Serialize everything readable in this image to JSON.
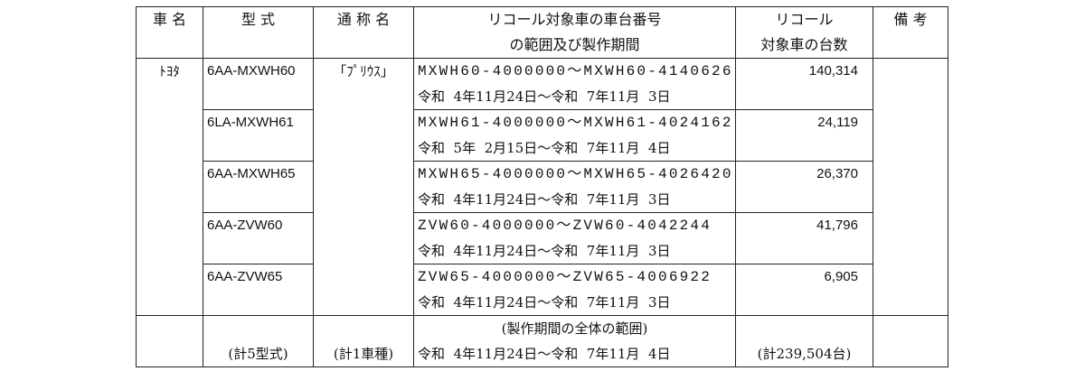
{
  "header": {
    "maker": "車 名",
    "model": "型 式",
    "name": "通 称 名",
    "range_line1": "リコール対象車の車台番号",
    "range_line2": "の範囲及び製作期間",
    "count_line1": "リコール",
    "count_line2": "対象車の台数",
    "remarks": "備 考"
  },
  "maker": "ﾄﾖﾀ",
  "common_name": "「ﾌﾟﾘｳｽ」",
  "rows": [
    {
      "model": "6AA-MXWH60",
      "vin_range": "MXWH60-4000000～MXWH60-4140626",
      "period": "令和  4年11月24日～令和  7年11月  3日",
      "count": "140,314"
    },
    {
      "model": "6LA-MXWH61",
      "vin_range": "MXWH61-4000000～MXWH61-4024162",
      "period": "令和  5年  2月15日～令和  7年11月  4日",
      "count": "24,119"
    },
    {
      "model": "6AA-MXWH65",
      "vin_range": "MXWH65-4000000～MXWH65-4026420",
      "period": "令和  4年11月24日～令和  7年11月  3日",
      "count": "26,370"
    },
    {
      "model": "6AA-ZVW60",
      "vin_range": "ZVW60-4000000～ZVW60-4042244",
      "period": "令和  4年11月24日～令和  7年11月  3日",
      "count": "41,796"
    },
    {
      "model": "6AA-ZVW65",
      "vin_range": "ZVW65-4000000～ZVW65-4006922",
      "period": "令和  4年11月24日～令和  7年11月  3日",
      "count": "6,905"
    }
  ],
  "total": {
    "models": "(計5型式)",
    "names": "(計1車種)",
    "period_label": "(製作期間の全体の範囲)",
    "period": "令和  4年11月24日～令和  7年11月  4日",
    "count": "(計239,504台)"
  }
}
